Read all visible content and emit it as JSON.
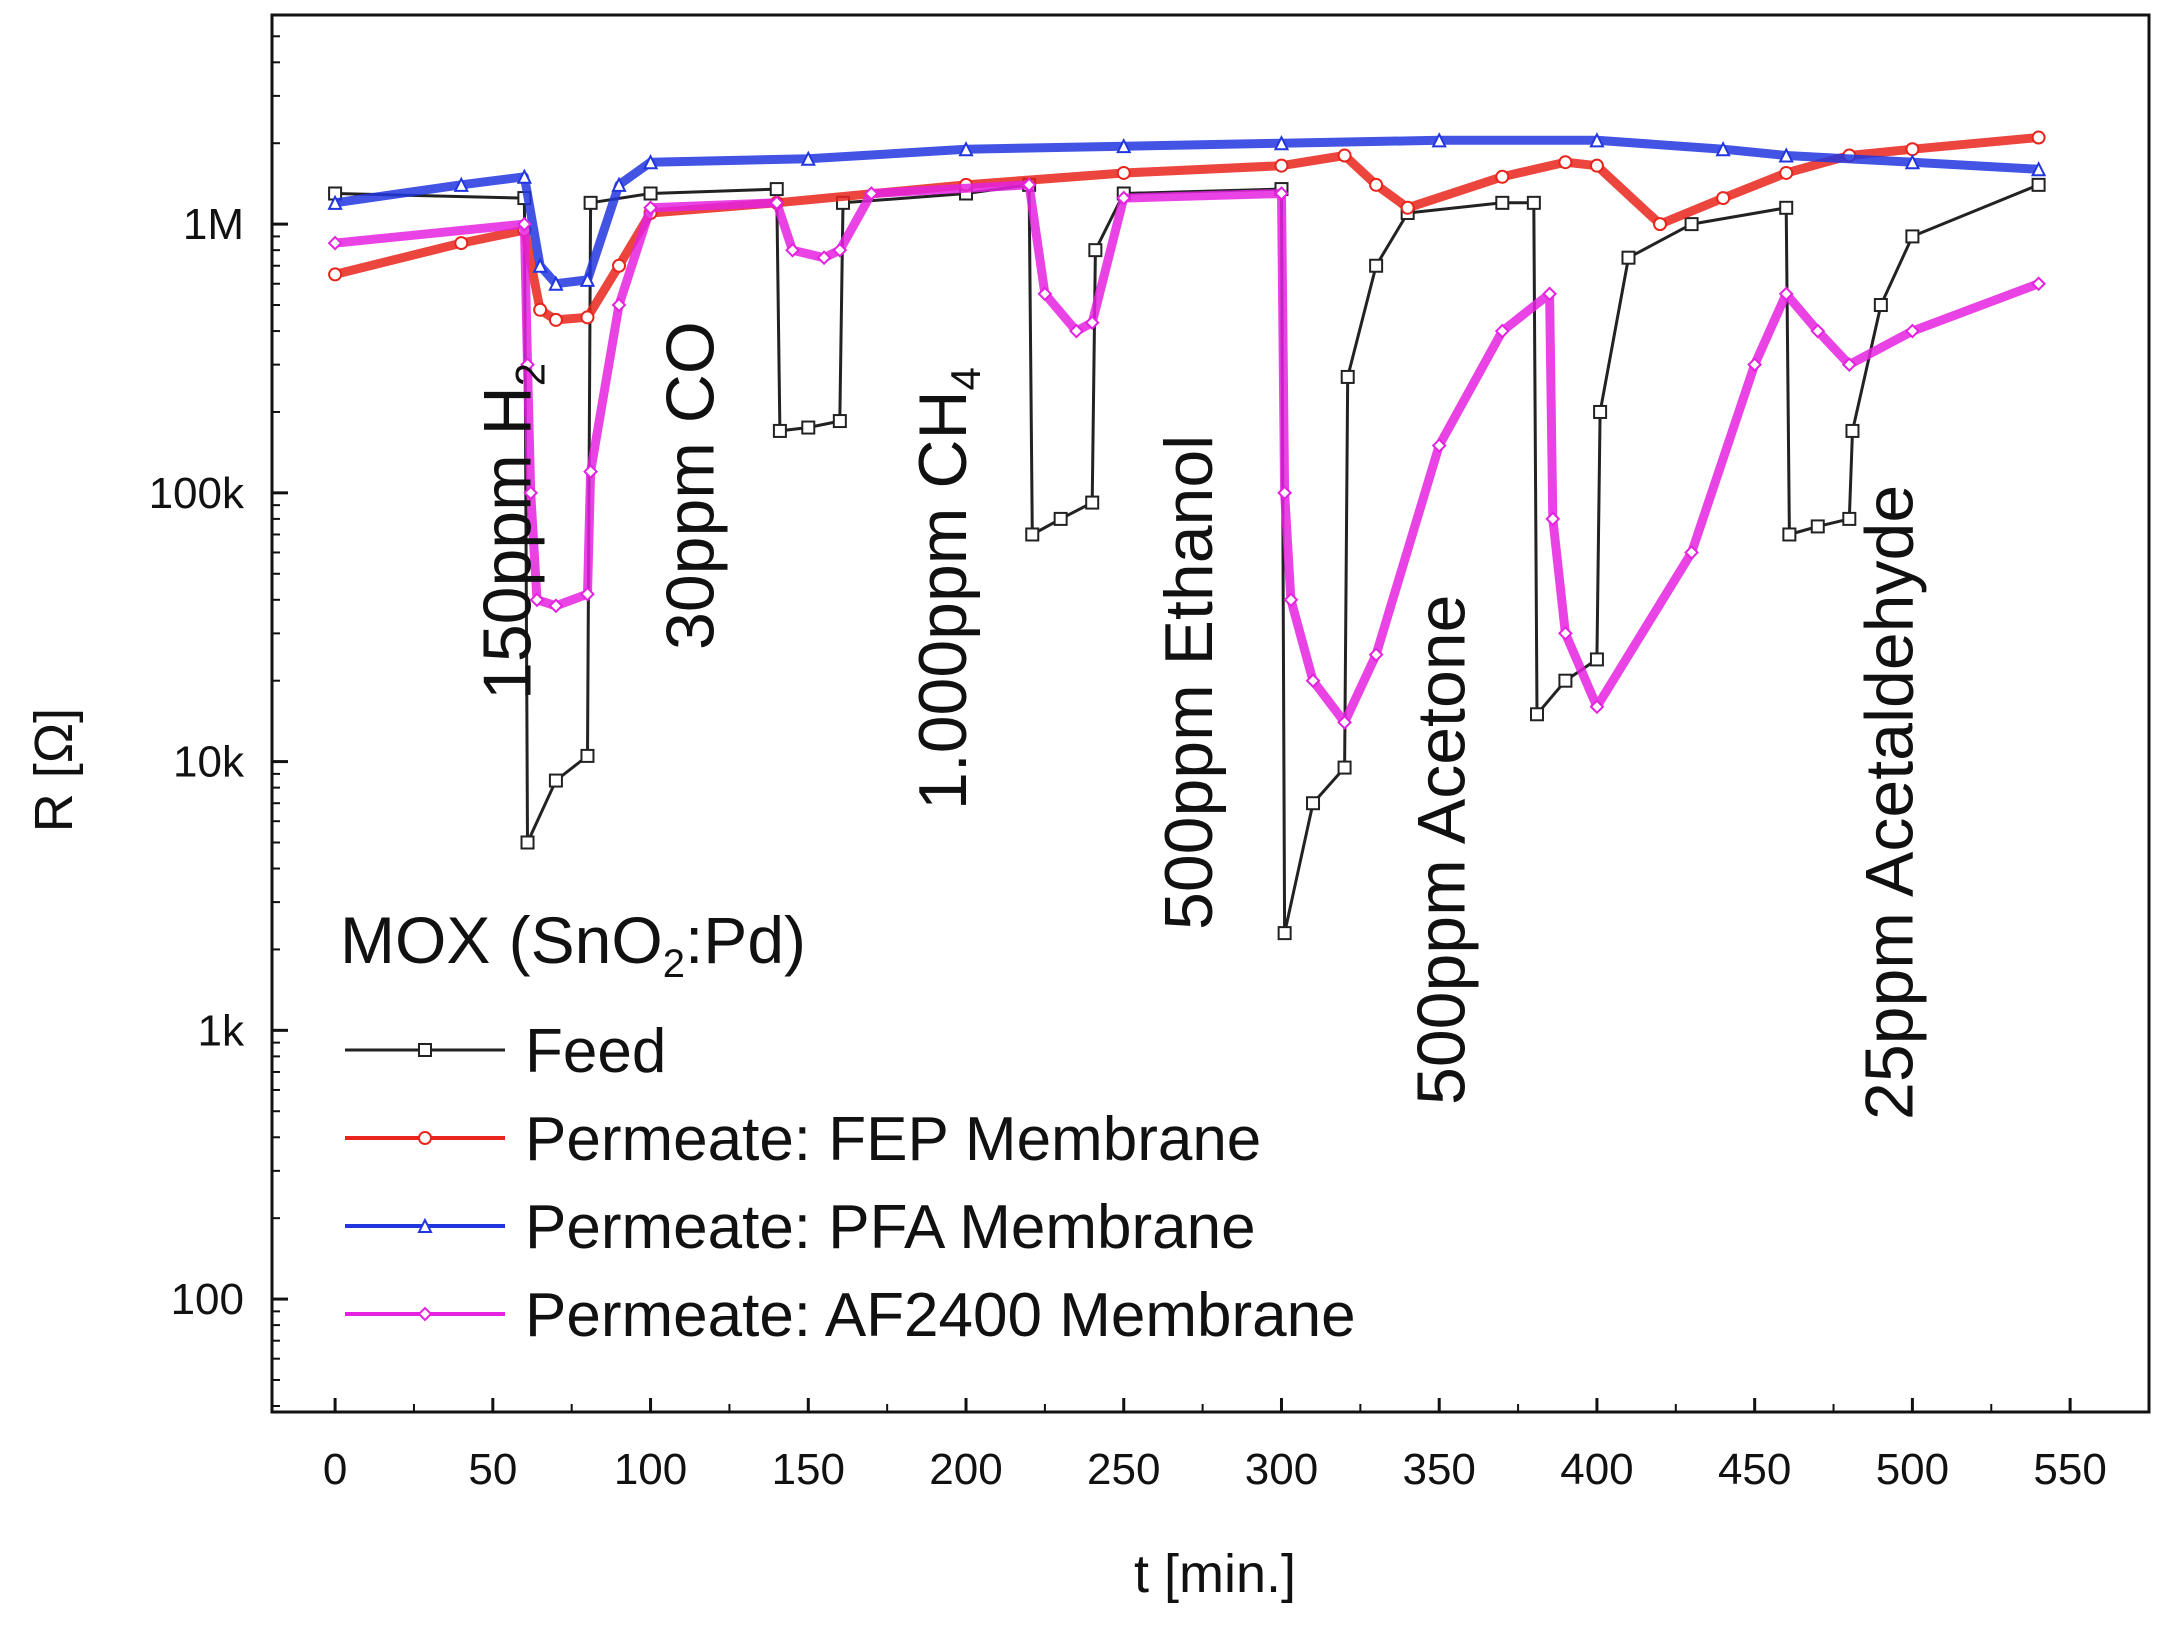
{
  "chart_data": {
    "type": "line",
    "y_scale": "log",
    "xlabel": "t [min.]",
    "ylabel": "R [Ω]",
    "xlim": [
      -20,
      575
    ],
    "ylim": [
      38,
      6000000
    ],
    "x_ticks": [
      0,
      50,
      100,
      150,
      200,
      250,
      300,
      350,
      400,
      450,
      500,
      550
    ],
    "x_tick_labels": [
      "0",
      "50",
      "100",
      "150",
      "200",
      "250",
      "300",
      "350",
      "400",
      "450",
      "500",
      "550"
    ],
    "y_ticks": [
      100,
      1000,
      10000,
      100000,
      1000000
    ],
    "y_tick_labels": [
      "100",
      "1k",
      "10k",
      "100k",
      "1M"
    ],
    "legend": {
      "title_main": "MOX (SnO",
      "title_sub": "2",
      "title_end": ":Pd)",
      "placement": "bottom-left"
    },
    "annotations": [
      {
        "main": "150ppm H",
        "sub": "2",
        "x": 62
      },
      {
        "main": "30ppm CO",
        "sub": "",
        "x": 120
      },
      {
        "main": "1.000ppm CH",
        "sub": "4",
        "x": 200
      },
      {
        "main": "500ppm Ethanol",
        "sub": "",
        "x": 278
      },
      {
        "main": "500ppm Acetone",
        "sub": "",
        "x": 358
      },
      {
        "main": "25ppm Acetaldehyde",
        "sub": "",
        "x": 500
      }
    ],
    "series": [
      {
        "name": "Feed",
        "color": "#222222",
        "marker": "square",
        "points": [
          [
            0,
            1300000
          ],
          [
            60,
            1250000
          ],
          [
            61,
            5000
          ],
          [
            70,
            8500
          ],
          [
            80,
            10500
          ],
          [
            81,
            1200000
          ],
          [
            100,
            1300000
          ],
          [
            140,
            1350000
          ],
          [
            141,
            170000
          ],
          [
            150,
            175000
          ],
          [
            160,
            185000
          ],
          [
            161,
            1200000
          ],
          [
            200,
            1300000
          ],
          [
            220,
            1400000
          ],
          [
            221,
            70000
          ],
          [
            230,
            80000
          ],
          [
            240,
            92000
          ],
          [
            241,
            800000
          ],
          [
            250,
            1300000
          ],
          [
            300,
            1350000
          ],
          [
            301,
            2300
          ],
          [
            310,
            7000
          ],
          [
            320,
            9500
          ],
          [
            321,
            270000
          ],
          [
            330,
            700000
          ],
          [
            340,
            1100000
          ],
          [
            370,
            1200000
          ],
          [
            380,
            1200000
          ],
          [
            381,
            15000
          ],
          [
            390,
            20000
          ],
          [
            400,
            24000
          ],
          [
            401,
            200000
          ],
          [
            410,
            750000
          ],
          [
            430,
            1000000
          ],
          [
            460,
            1150000
          ],
          [
            461,
            70000
          ],
          [
            470,
            75000
          ],
          [
            480,
            80000
          ],
          [
            481,
            170000
          ],
          [
            490,
            500000
          ],
          [
            500,
            900000
          ],
          [
            540,
            1400000
          ]
        ]
      },
      {
        "name": "Permeate: FEP Membrane",
        "color": "#e8251c",
        "marker": "circle",
        "points": [
          [
            0,
            650000
          ],
          [
            40,
            850000
          ],
          [
            60,
            950000
          ],
          [
            65,
            480000
          ],
          [
            70,
            440000
          ],
          [
            80,
            450000
          ],
          [
            90,
            700000
          ],
          [
            100,
            1100000
          ],
          [
            140,
            1200000
          ],
          [
            200,
            1400000
          ],
          [
            250,
            1550000
          ],
          [
            300,
            1650000
          ],
          [
            320,
            1800000
          ],
          [
            330,
            1400000
          ],
          [
            340,
            1150000
          ],
          [
            370,
            1500000
          ],
          [
            390,
            1700000
          ],
          [
            400,
            1650000
          ],
          [
            420,
            1000000
          ],
          [
            440,
            1250000
          ],
          [
            460,
            1550000
          ],
          [
            480,
            1800000
          ],
          [
            500,
            1900000
          ],
          [
            540,
            2100000
          ]
        ]
      },
      {
        "name": "Permeate: PFA Membrane",
        "color": "#2236e0",
        "marker": "triangle",
        "points": [
          [
            0,
            1200000
          ],
          [
            40,
            1400000
          ],
          [
            60,
            1500000
          ],
          [
            65,
            700000
          ],
          [
            70,
            600000
          ],
          [
            80,
            620000
          ],
          [
            90,
            1400000
          ],
          [
            100,
            1700000
          ],
          [
            150,
            1750000
          ],
          [
            200,
            1900000
          ],
          [
            250,
            1950000
          ],
          [
            300,
            2000000
          ],
          [
            350,
            2050000
          ],
          [
            400,
            2050000
          ],
          [
            440,
            1900000
          ],
          [
            460,
            1800000
          ],
          [
            500,
            1700000
          ],
          [
            540,
            1600000
          ]
        ]
      },
      {
        "name": "Permeate: AF2400 Membrane",
        "color": "#e522e0",
        "marker": "diamond",
        "points": [
          [
            0,
            850000
          ],
          [
            60,
            1000000
          ],
          [
            61,
            300000
          ],
          [
            62,
            100000
          ],
          [
            64,
            40000
          ],
          [
            70,
            38000
          ],
          [
            80,
            42000
          ],
          [
            81,
            120000
          ],
          [
            90,
            500000
          ],
          [
            100,
            1150000
          ],
          [
            140,
            1200000
          ],
          [
            145,
            800000
          ],
          [
            155,
            750000
          ],
          [
            160,
            800000
          ],
          [
            170,
            1300000
          ],
          [
            220,
            1400000
          ],
          [
            225,
            550000
          ],
          [
            235,
            400000
          ],
          [
            240,
            430000
          ],
          [
            250,
            1250000
          ],
          [
            300,
            1300000
          ],
          [
            301,
            100000
          ],
          [
            303,
            40000
          ],
          [
            310,
            20000
          ],
          [
            320,
            14000
          ],
          [
            330,
            25000
          ],
          [
            350,
            150000
          ],
          [
            370,
            400000
          ],
          [
            385,
            550000
          ],
          [
            386,
            80000
          ],
          [
            390,
            30000
          ],
          [
            400,
            16000
          ],
          [
            430,
            60000
          ],
          [
            450,
            300000
          ],
          [
            460,
            550000
          ],
          [
            470,
            400000
          ],
          [
            480,
            300000
          ],
          [
            500,
            400000
          ],
          [
            540,
            600000
          ]
        ]
      }
    ]
  }
}
